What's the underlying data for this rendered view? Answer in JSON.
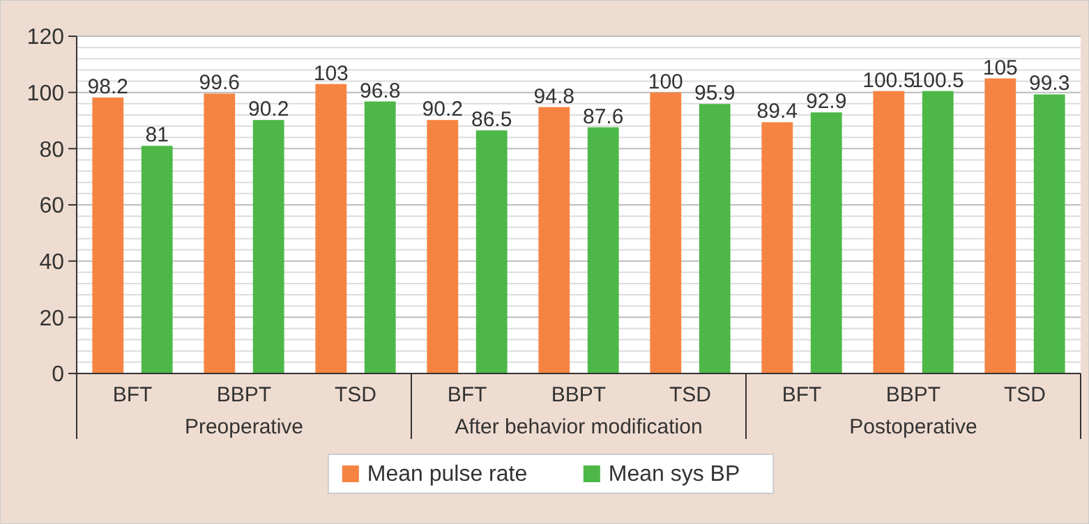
{
  "chart_data": {
    "type": "bar",
    "categories": [
      "BFT",
      "BBPT",
      "TSD",
      "BFT",
      "BBPT",
      "TSD",
      "BFT",
      "BBPT",
      "TSD"
    ],
    "series": [
      {
        "name": "Mean pulse rate",
        "color": "#f58442",
        "values": [
          98.2,
          99.6,
          103,
          90.2,
          94.8,
          100,
          89.4,
          100.5,
          105
        ]
      },
      {
        "name": "Mean sys BP",
        "color": "#4db848",
        "values": [
          81,
          90.2,
          96.8,
          86.5,
          87.6,
          95.9,
          92.9,
          100.5,
          99.3
        ]
      }
    ],
    "annotations": [
      "Preoperative",
      "After behavior modification",
      "Postoperative"
    ],
    "ylim": [
      0,
      120
    ],
    "yticks": [
      0,
      {
        "value": 4,
        "label": null
      },
      {
        "value": 8,
        "label": null
      },
      {
        "value": 12,
        "label": null
      },
      {
        "value": 16,
        "label": null
      },
      20,
      {
        "value": 24,
        "label": null
      },
      {
        "value": 28,
        "label": null
      },
      {
        "value": 32,
        "label": null
      },
      {
        "value": 36,
        "label": null
      },
      40,
      {
        "value": 44,
        "label": null
      },
      {
        "value": 48,
        "label": null
      },
      {
        "value": 52,
        "label": null
      },
      {
        "value": 56,
        "label": null
      },
      60,
      {
        "value": 64,
        "label": null
      },
      {
        "value": 68,
        "label": null
      },
      {
        "value": 72,
        "label": null
      },
      {
        "value": 76,
        "label": null
      },
      80,
      {
        "value": 84,
        "label": null
      },
      {
        "value": 88,
        "label": null
      },
      {
        "value": 92,
        "label": null
      },
      {
        "value": 96,
        "label": null
      },
      100,
      {
        "value": 104,
        "label": null
      },
      {
        "value": 108,
        "label": null
      },
      {
        "value": 112,
        "label": null
      },
      {
        "value": 116,
        "label": null
      },
      120
    ],
    "grid": "y",
    "legend": "bottom",
    "data_labels": true
  }
}
